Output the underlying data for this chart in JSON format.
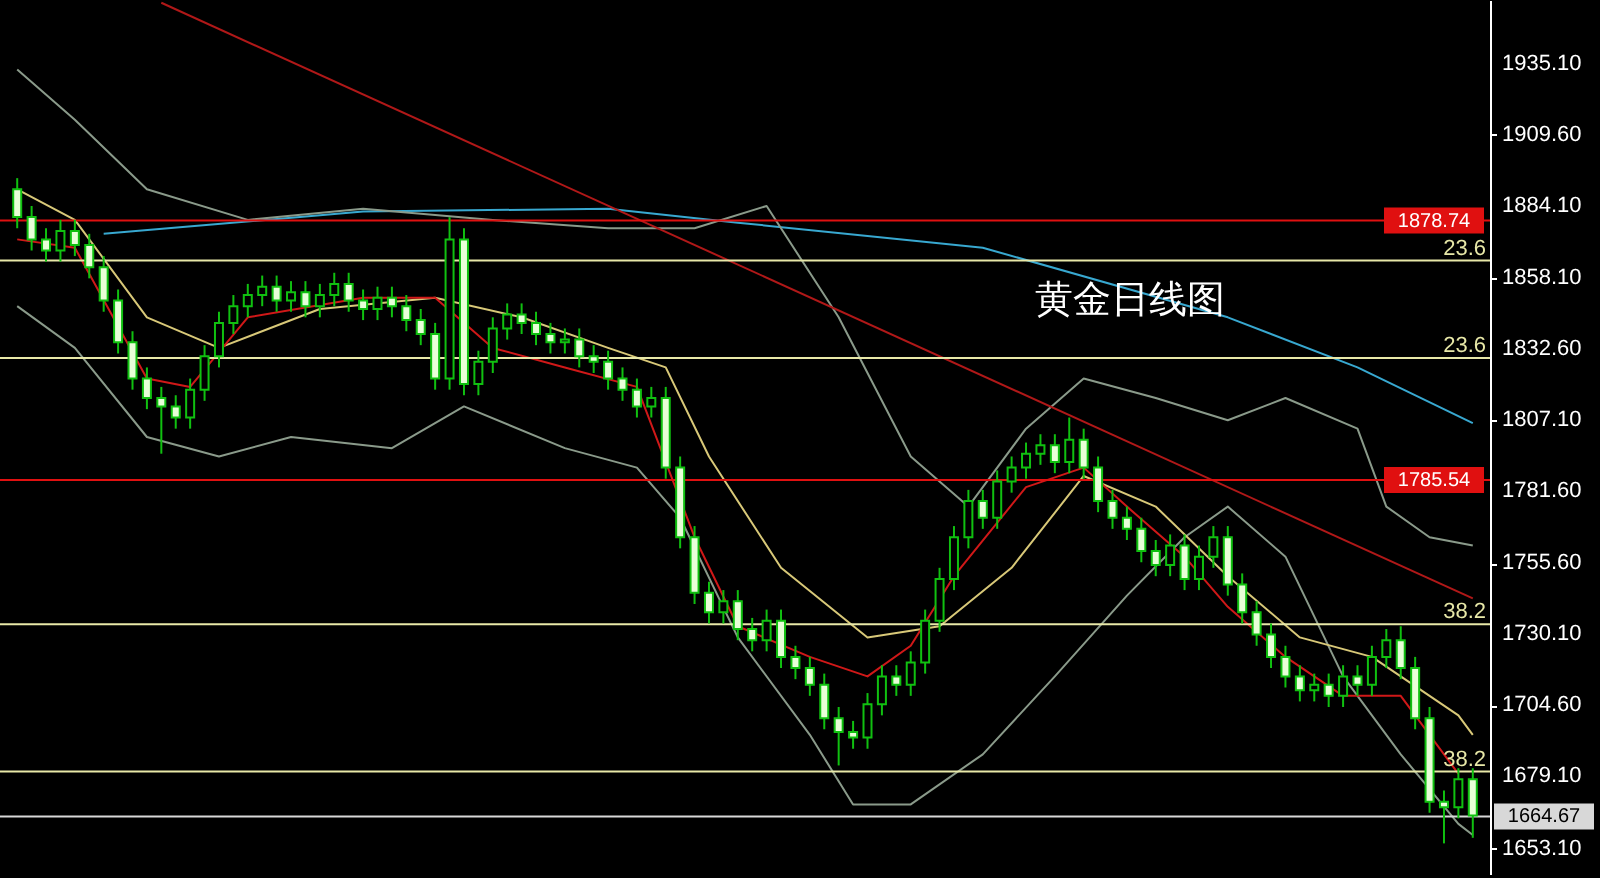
{
  "chart_data": {
    "type": "candlestick",
    "annotations": [
      "黄金日线图",
      "23.6",
      "23.6",
      "38.2",
      "38.2"
    ],
    "color": "#10c010",
    "categories": [
      null,
      null,
      null,
      null,
      null,
      null,
      null,
      null,
      null,
      null,
      null,
      null,
      null,
      null,
      null,
      null,
      null,
      null,
      null,
      null,
      null,
      null,
      null,
      null,
      null,
      null,
      null,
      null,
      null,
      null,
      null,
      null,
      null,
      null,
      null,
      null,
      null,
      null,
      null,
      null,
      null,
      null,
      null,
      null,
      null,
      null,
      null,
      null,
      null,
      null,
      null,
      null,
      null,
      null,
      null,
      null,
      null,
      null,
      null,
      null,
      null,
      null,
      null,
      null,
      null,
      null,
      null,
      null,
      null,
      null,
      null,
      null,
      null,
      null,
      null,
      null,
      null,
      null,
      null,
      null,
      null,
      null,
      null,
      null,
      null,
      null,
      null,
      null,
      null,
      null,
      null,
      null,
      null,
      null,
      null,
      null,
      null,
      null,
      null,
      null,
      null,
      null
    ],
    "ohlc": [
      [
        1890,
        1894,
        1876,
        1880
      ],
      [
        1880,
        1884,
        1868,
        1872
      ],
      [
        1872,
        1876,
        1864,
        1868
      ],
      [
        1868,
        1879,
        1864,
        1875
      ],
      [
        1875,
        1879,
        1866,
        1870
      ],
      [
        1870,
        1874,
        1858,
        1862
      ],
      [
        1862,
        1866,
        1846,
        1850
      ],
      [
        1850,
        1854,
        1831,
        1835
      ],
      [
        1835,
        1839,
        1818,
        1822
      ],
      [
        1822,
        1826,
        1811,
        1815
      ],
      [
        1815,
        1819,
        1795,
        1812
      ],
      [
        1812,
        1816,
        1804,
        1808
      ],
      [
        1808,
        1822,
        1804,
        1818
      ],
      [
        1818,
        1834,
        1814,
        1830
      ],
      [
        1830,
        1846,
        1826,
        1842
      ],
      [
        1842,
        1852,
        1838,
        1848
      ],
      [
        1848,
        1856,
        1844,
        1852
      ],
      [
        1852,
        1859,
        1848,
        1855
      ],
      [
        1855,
        1859,
        1846,
        1850
      ],
      [
        1850,
        1857,
        1846,
        1853
      ],
      [
        1853,
        1857,
        1844,
        1848
      ],
      [
        1848,
        1856,
        1844,
        1852
      ],
      [
        1852,
        1860,
        1848,
        1856
      ],
      [
        1856,
        1860,
        1846,
        1850
      ],
      [
        1850,
        1854,
        1843,
        1847
      ],
      [
        1847,
        1855,
        1843,
        1851
      ],
      [
        1851,
        1855,
        1844,
        1848
      ],
      [
        1848,
        1852,
        1839,
        1843
      ],
      [
        1843,
        1847,
        1834,
        1838
      ],
      [
        1838,
        1842,
        1818,
        1822
      ],
      [
        1822,
        1880,
        1818,
        1872
      ],
      [
        1872,
        1876,
        1816,
        1820
      ],
      [
        1820,
        1832,
        1816,
        1828
      ],
      [
        1828,
        1844,
        1824,
        1840
      ],
      [
        1840,
        1849,
        1836,
        1845
      ],
      [
        1845,
        1849,
        1838,
        1842
      ],
      [
        1842,
        1846,
        1834,
        1838
      ],
      [
        1838,
        1842,
        1831,
        1835
      ],
      [
        1835,
        1840,
        1831,
        1836
      ],
      [
        1836,
        1840,
        1826,
        1830
      ],
      [
        1830,
        1834,
        1824,
        1828
      ],
      [
        1828,
        1832,
        1818,
        1822
      ],
      [
        1822,
        1826,
        1814,
        1818
      ],
      [
        1818,
        1822,
        1808,
        1812
      ],
      [
        1812,
        1819,
        1808,
        1815
      ],
      [
        1815,
        1819,
        1786,
        1790
      ],
      [
        1790,
        1794,
        1761,
        1765
      ],
      [
        1765,
        1769,
        1741,
        1745
      ],
      [
        1745,
        1749,
        1734,
        1738
      ],
      [
        1738,
        1746,
        1734,
        1742
      ],
      [
        1742,
        1746,
        1728,
        1732
      ],
      [
        1732,
        1736,
        1724,
        1728
      ],
      [
        1728,
        1739,
        1724,
        1735
      ],
      [
        1735,
        1739,
        1718,
        1722
      ],
      [
        1722,
        1726,
        1714,
        1718
      ],
      [
        1718,
        1722,
        1708,
        1712
      ],
      [
        1712,
        1716,
        1696,
        1700
      ],
      [
        1700,
        1704,
        1683,
        1695
      ],
      [
        1695,
        1699,
        1689,
        1693
      ],
      [
        1693,
        1709,
        1689,
        1705
      ],
      [
        1705,
        1719,
        1701,
        1715
      ],
      [
        1715,
        1719,
        1708,
        1712
      ],
      [
        1712,
        1724,
        1708,
        1720
      ],
      [
        1720,
        1739,
        1716,
        1735
      ],
      [
        1735,
        1754,
        1731,
        1750
      ],
      [
        1750,
        1769,
        1746,
        1765
      ],
      [
        1765,
        1782,
        1761,
        1778
      ],
      [
        1778,
        1782,
        1768,
        1772
      ],
      [
        1772,
        1789,
        1768,
        1785
      ],
      [
        1785,
        1794,
        1781,
        1790
      ],
      [
        1790,
        1799,
        1786,
        1795
      ],
      [
        1795,
        1802,
        1791,
        1798
      ],
      [
        1798,
        1802,
        1788,
        1792
      ],
      [
        1792,
        1808,
        1788,
        1800
      ],
      [
        1800,
        1804,
        1786,
        1790
      ],
      [
        1790,
        1794,
        1774,
        1778
      ],
      [
        1778,
        1782,
        1768,
        1772
      ],
      [
        1772,
        1776,
        1764,
        1768
      ],
      [
        1768,
        1772,
        1756,
        1760
      ],
      [
        1760,
        1764,
        1751,
        1755
      ],
      [
        1755,
        1766,
        1751,
        1762
      ],
      [
        1762,
        1766,
        1746,
        1750
      ],
      [
        1750,
        1762,
        1746,
        1758
      ],
      [
        1758,
        1769,
        1754,
        1765
      ],
      [
        1765,
        1769,
        1744,
        1748
      ],
      [
        1748,
        1752,
        1734,
        1738
      ],
      [
        1738,
        1742,
        1726,
        1730
      ],
      [
        1730,
        1734,
        1718,
        1722
      ],
      [
        1722,
        1726,
        1711,
        1715
      ],
      [
        1715,
        1719,
        1706,
        1710
      ],
      [
        1710,
        1716,
        1706,
        1712
      ],
      [
        1712,
        1716,
        1704,
        1708
      ],
      [
        1708,
        1719,
        1704,
        1715
      ],
      [
        1715,
        1719,
        1708,
        1712
      ],
      [
        1712,
        1726,
        1708,
        1722
      ],
      [
        1722,
        1732,
        1718,
        1728
      ],
      [
        1728,
        1733,
        1714,
        1718
      ],
      [
        1718,
        1722,
        1696,
        1700
      ],
      [
        1700,
        1704,
        1666,
        1670
      ],
      [
        1670,
        1674,
        1655,
        1668
      ],
      [
        1668,
        1682,
        1664,
        1678
      ],
      [
        1678,
        1682,
        1657,
        1665
      ]
    ],
    "series": [
      {
        "type": "line",
        "color": "#38a8d0",
        "values": [
          null,
          null,
          null,
          null,
          null,
          null,
          1874,
          null,
          null,
          null,
          null,
          null,
          null,
          null,
          null,
          null,
          null,
          null,
          null,
          null,
          null,
          null,
          null,
          null,
          1882,
          null,
          null,
          null,
          null,
          null,
          null,
          null,
          null,
          null,
          null,
          null,
          null,
          null,
          null,
          null,
          null,
          1883,
          null,
          null,
          null,
          null,
          null,
          null,
          null,
          null,
          1878,
          null,
          null,
          null,
          null,
          null,
          null,
          null,
          null,
          null,
          null,
          null,
          null,
          null,
          null,
          null,
          null,
          1869,
          null,
          null,
          null,
          null,
          null,
          null,
          null,
          null,
          null,
          null,
          null,
          null,
          null,
          null,
          null,
          null,
          1844,
          null,
          null,
          null,
          null,
          null,
          null,
          null,
          null,
          1826,
          null,
          null,
          null,
          null,
          null,
          null,
          null,
          1806
        ]
      },
      {
        "type": "line",
        "color": "#8a9a8a",
        "values": [
          1933,
          null,
          null,
          null,
          1915,
          null,
          null,
          null,
          null,
          1890,
          null,
          null,
          null,
          null,
          null,
          null,
          1879,
          null,
          null,
          null,
          null,
          null,
          null,
          null,
          1883,
          null,
          null,
          null,
          null,
          null,
          null,
          null,
          null,
          1879,
          null,
          null,
          null,
          null,
          null,
          null,
          null,
          1876,
          null,
          null,
          null,
          null,
          null,
          1876,
          null,
          null,
          null,
          null,
          1884,
          null,
          null,
          null,
          null,
          1844,
          null,
          null,
          null,
          null,
          1794,
          null,
          null,
          null,
          1776,
          null,
          null,
          null,
          1804,
          null,
          null,
          null,
          1822,
          null,
          null,
          null,
          null,
          1815,
          null,
          null,
          null,
          null,
          1807,
          null,
          null,
          null,
          1815,
          null,
          null,
          null,
          null,
          1804,
          null,
          1776,
          null,
          null,
          1765,
          null,
          null,
          1762
        ]
      },
      {
        "type": "line",
        "color": "#8a9a8a",
        "values": [
          1848,
          null,
          null,
          null,
          1833,
          null,
          null,
          null,
          null,
          1801,
          null,
          null,
          null,
          null,
          1794,
          null,
          null,
          null,
          null,
          1801,
          null,
          null,
          null,
          null,
          null,
          null,
          1797,
          null,
          null,
          null,
          null,
          1812,
          null,
          null,
          null,
          null,
          null,
          null,
          1797,
          null,
          null,
          null,
          null,
          1790,
          null,
          null,
          1772,
          null,
          null,
          null,
          1729,
          null,
          null,
          null,
          null,
          1694,
          null,
          null,
          1669,
          null,
          null,
          null,
          1669,
          null,
          null,
          null,
          null,
          1687,
          null,
          null,
          null,
          null,
          1715,
          null,
          null,
          null,
          null,
          1744,
          null,
          null,
          null,
          1765,
          null,
          null,
          1776,
          null,
          null,
          null,
          1758,
          null,
          null,
          null,
          1715,
          null,
          null,
          null,
          1687,
          null,
          null,
          null,
          1662,
          1658
        ]
      },
      {
        "type": "line",
        "color": "#d8c878",
        "values": [
          1890,
          null,
          null,
          null,
          1879,
          null,
          null,
          null,
          null,
          1844,
          null,
          null,
          null,
          null,
          1833,
          null,
          null,
          null,
          null,
          null,
          null,
          1847,
          null,
          null,
          null,
          null,
          null,
          null,
          null,
          1851,
          null,
          null,
          null,
          null,
          null,
          1844,
          null,
          null,
          null,
          null,
          null,
          1833,
          null,
          null,
          null,
          1826,
          null,
          null,
          1794,
          null,
          null,
          null,
          null,
          1754,
          null,
          null,
          null,
          null,
          null,
          1729,
          null,
          null,
          null,
          null,
          1733,
          null,
          null,
          null,
          null,
          1754,
          null,
          null,
          null,
          null,
          1787,
          null,
          null,
          null,
          null,
          1776,
          null,
          null,
          null,
          null,
          1751,
          null,
          null,
          null,
          null,
          1729,
          null,
          null,
          null,
          null,
          1722,
          null,
          null,
          null,
          null,
          null,
          1701,
          1694
        ]
      },
      {
        "type": "line",
        "color": "#d01818",
        "values": [
          1872,
          null,
          null,
          null,
          1869,
          null,
          null,
          null,
          null,
          1822,
          null,
          null,
          1819,
          null,
          null,
          null,
          1844,
          null,
          null,
          null,
          null,
          null,
          null,
          null,
          1851,
          null,
          null,
          null,
          null,
          1851,
          null,
          null,
          null,
          1833,
          null,
          null,
          null,
          null,
          1826,
          null,
          null,
          null,
          null,
          1819,
          null,
          null,
          null,
          1765,
          null,
          null,
          1733,
          null,
          null,
          null,
          null,
          1722,
          null,
          null,
          null,
          1715,
          null,
          null,
          1726,
          null,
          null,
          1751,
          null,
          null,
          null,
          null,
          1783,
          null,
          null,
          null,
          1790,
          null,
          null,
          1776,
          null,
          null,
          null,
          1758,
          null,
          null,
          1740,
          null,
          null,
          null,
          1722,
          null,
          null,
          null,
          1708,
          null,
          null,
          null,
          1708,
          null,
          null,
          null,
          1680,
          null
        ]
      },
      {
        "type": "line",
        "color": "#b01818",
        "values": [
          null,
          null,
          null,
          null,
          null,
          null,
          null,
          null,
          null,
          null,
          1957,
          null,
          null,
          null,
          null,
          null,
          null,
          null,
          null,
          null,
          null,
          null,
          null,
          null,
          null,
          null,
          null,
          null,
          null,
          null,
          null,
          null,
          null,
          null,
          null,
          null,
          null,
          null,
          null,
          null,
          null,
          null,
          null,
          null,
          null,
          null,
          null,
          null,
          null,
          null,
          null,
          null,
          null,
          null,
          null,
          null,
          null,
          null,
          null,
          null,
          null,
          null,
          null,
          null,
          null,
          null,
          null,
          null,
          null,
          null,
          null,
          null,
          null,
          null,
          null,
          null,
          null,
          null,
          null,
          null,
          null,
          null,
          null,
          null,
          null,
          null,
          null,
          null,
          null,
          null,
          null,
          null,
          null,
          null,
          null,
          null,
          null,
          null,
          null,
          null,
          null,
          1743
        ]
      }
    ],
    "ref_lines": [
      {
        "axis": "y",
        "value": 1878.74,
        "label": "1878.74",
        "color": "#e01010"
      },
      {
        "axis": "y",
        "value": 1864.4,
        "color": "#e8e8a8"
      },
      {
        "axis": "y",
        "value": 1829.4,
        "color": "#e8e8a8"
      },
      {
        "axis": "y",
        "value": 1785.54,
        "label": "1785.54",
        "color": "#e01010"
      },
      {
        "axis": "y",
        "value": 1733.7,
        "color": "#e8e8a8"
      },
      {
        "axis": "y",
        "value": 1680.8,
        "color": "#e8e8a8"
      },
      {
        "axis": "y",
        "value": 1664.67,
        "label": "1664.67",
        "color": "#d8d8d8"
      }
    ],
    "ylim": [
      1644,
      1958
    ],
    "yticks": [
      {
        "value": 1935.1,
        "label": "1935.10"
      },
      {
        "value": 1909.6,
        "label": "1909.60"
      },
      {
        "value": 1884.1,
        "label": "1884.10"
      },
      {
        "value": 1858.1,
        "label": "1858.10"
      },
      {
        "value": 1832.6,
        "label": "1832.60"
      },
      {
        "value": 1807.1,
        "label": "1807.10"
      },
      {
        "value": 1781.6,
        "label": "1781.60"
      },
      {
        "value": 1755.6,
        "label": "1755.60"
      },
      {
        "value": 1730.1,
        "label": "1730.10"
      },
      {
        "value": 1704.6,
        "label": "1704.60"
      },
      {
        "value": 1679.1,
        "label": "1679.10"
      },
      {
        "value": 1653.1,
        "label": "1653.10"
      }
    ],
    "tick_labels": "y",
    "grid": false
  }
}
